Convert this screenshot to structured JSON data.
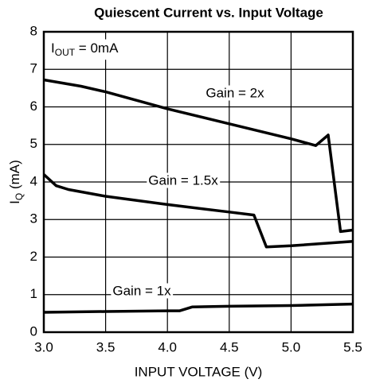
{
  "chart_data": {
    "type": "line",
    "title": "Quiescent Current vs. Input Voltage",
    "x_label": "INPUT VOLTAGE (V)",
    "y_label": {
      "main": "I",
      "sub": "Q",
      "rest": " (mA)"
    },
    "annotation": {
      "main": "I",
      "sub": "OUT",
      "rest": " = 0mA"
    },
    "xlim": [
      3.0,
      5.5
    ],
    "xticks": [
      {
        "value": 3.0,
        "label": "3.0"
      },
      3.5,
      {
        "value": 4.0,
        "label": "4.0"
      },
      4.5,
      {
        "value": 5.0,
        "label": "5.0"
      },
      5.5
    ],
    "ylim": [
      0,
      8
    ],
    "yticks": [
      0,
      1,
      2,
      3,
      4,
      5,
      6,
      7,
      8
    ],
    "grid": true,
    "series": [
      {
        "name": "Gain = 2x",
        "color": "#000000",
        "x": [
          3.0,
          3.3,
          3.5,
          4.0,
          4.5,
          5.0,
          5.2,
          5.3,
          5.4,
          5.5
        ],
        "values": [
          6.72,
          6.55,
          6.4,
          5.95,
          5.55,
          5.15,
          4.97,
          5.25,
          2.68,
          2.72
        ]
      },
      {
        "name": "Gain = 1.5x",
        "color": "#000000",
        "x": [
          3.0,
          3.1,
          3.2,
          3.5,
          4.0,
          4.5,
          4.7,
          4.8,
          5.0,
          5.5
        ],
        "values": [
          4.2,
          3.9,
          3.8,
          3.62,
          3.4,
          3.2,
          3.12,
          2.27,
          2.3,
          2.42
        ]
      },
      {
        "name": "Gain = 1x",
        "color": "#000000",
        "x": [
          3.0,
          3.5,
          4.0,
          4.1,
          4.2,
          4.5,
          5.0,
          5.5
        ],
        "values": [
          0.53,
          0.55,
          0.57,
          0.57,
          0.67,
          0.69,
          0.71,
          0.75
        ]
      }
    ]
  }
}
